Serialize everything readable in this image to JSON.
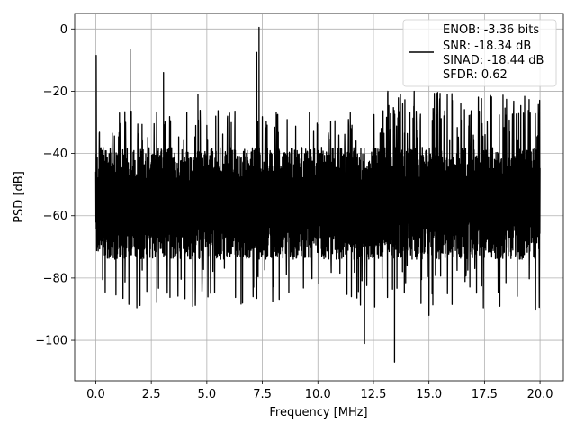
{
  "chart_data": {
    "type": "line",
    "title": "",
    "xlabel": "Frequency [MHz]",
    "ylabel": "PSD [dB]",
    "xlim": [
      -0.95,
      21.05
    ],
    "ylim": [
      -113,
      5
    ],
    "grid": true,
    "xticks": [
      0.0,
      2.5,
      5.0,
      7.5,
      10.0,
      12.5,
      15.0,
      17.5,
      20.0
    ],
    "xtick_labels": [
      "0.0",
      "2.5",
      "5.0",
      "7.5",
      "10.0",
      "12.5",
      "15.0",
      "17.5",
      "20.0"
    ],
    "yticks": [
      0,
      -20,
      -40,
      -60,
      -80,
      -100
    ],
    "ytick_labels": [
      "0",
      "−20",
      "−40",
      "−60",
      "−80",
      "−100"
    ],
    "legend_position": "top-right",
    "legend_entries": [
      "ENOB: -3.36 bits",
      "SNR: -18.34 dB",
      "SINAD: -18.44 dB",
      "SFDR: 0.62"
    ],
    "series": [
      {
        "color": "#000000",
        "noise_band": {
          "x_range": [
            0.0,
            20.0
          ],
          "upper_db": -38,
          "lower_db": -74,
          "mean_db": -56
        },
        "spikes": [
          {
            "x": 0.02,
            "y": -8.5
          },
          {
            "x": 1.55,
            "y": -6.5
          },
          {
            "x": 3.05,
            "y": -14
          },
          {
            "x": 4.6,
            "y": -21
          },
          {
            "x": 5.4,
            "y": -28
          },
          {
            "x": 7.25,
            "y": -7.5
          },
          {
            "x": 7.35,
            "y": 0.5
          },
          {
            "x": 12.1,
            "y": -101
          },
          {
            "x": 13.45,
            "y": -107
          },
          {
            "x": 15.0,
            "y": -92
          },
          {
            "x": 19.8,
            "y": -90
          }
        ]
      }
    ]
  }
}
